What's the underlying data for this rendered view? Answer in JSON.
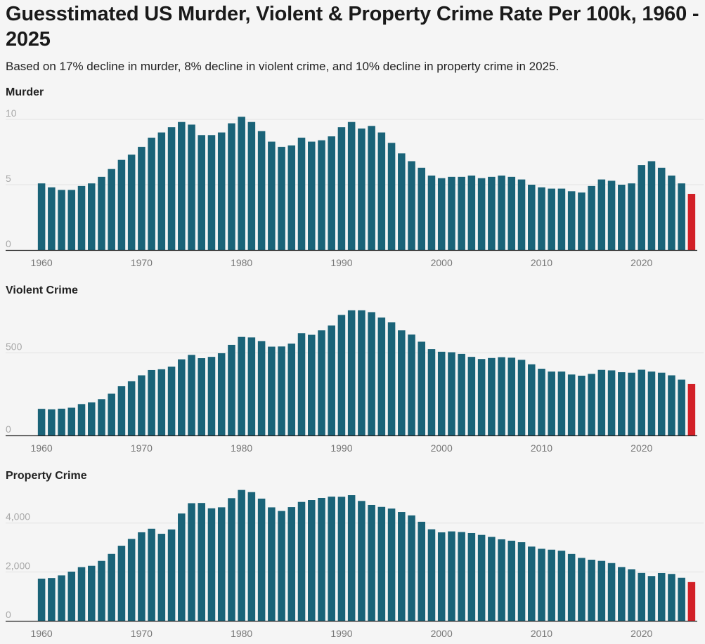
{
  "page": {
    "title": "Guesstimated US Murder, Violent & Property Crime Rate Per 100k, 1960 - 2025",
    "subtitle": "Based on 17% decline in murder, 8% decline in violent crime, and 10% decline in property crime in 2025."
  },
  "colors": {
    "bar": "#1a6378",
    "highlight": "#d22027"
  },
  "chart_data": [
    {
      "type": "bar",
      "title": "Murder",
      "x": [
        1960,
        1961,
        1962,
        1963,
        1964,
        1965,
        1966,
        1967,
        1968,
        1969,
        1970,
        1971,
        1972,
        1973,
        1974,
        1975,
        1976,
        1977,
        1978,
        1979,
        1980,
        1981,
        1982,
        1983,
        1984,
        1985,
        1986,
        1987,
        1988,
        1989,
        1990,
        1991,
        1992,
        1993,
        1994,
        1995,
        1996,
        1997,
        1998,
        1999,
        2000,
        2001,
        2002,
        2003,
        2004,
        2005,
        2006,
        2007,
        2008,
        2009,
        2010,
        2011,
        2012,
        2013,
        2014,
        2015,
        2016,
        2017,
        2018,
        2019,
        2020,
        2021,
        2022,
        2023,
        2024,
        2025
      ],
      "values": [
        5.1,
        4.8,
        4.6,
        4.6,
        4.9,
        5.1,
        5.6,
        6.2,
        6.9,
        7.3,
        7.9,
        8.6,
        9.0,
        9.4,
        9.8,
        9.6,
        8.8,
        8.8,
        9.0,
        9.7,
        10.2,
        9.8,
        9.1,
        8.3,
        7.9,
        8.0,
        8.6,
        8.3,
        8.4,
        8.7,
        9.4,
        9.8,
        9.3,
        9.5,
        9.0,
        8.2,
        7.4,
        6.8,
        6.3,
        5.7,
        5.5,
        5.6,
        5.6,
        5.7,
        5.5,
        5.6,
        5.7,
        5.6,
        5.4,
        5.0,
        4.8,
        4.7,
        4.7,
        4.5,
        4.4,
        4.9,
        5.4,
        5.3,
        5.0,
        5.1,
        6.5,
        6.8,
        6.3,
        5.7,
        5.1,
        4.3
      ],
      "highlight_index": 65,
      "ylim": [
        0,
        10
      ],
      "yticks": [
        0,
        5,
        10
      ],
      "ytick_labels": [
        "0",
        "5",
        "10"
      ],
      "xticks": [
        1960,
        1970,
        1980,
        1990,
        2000,
        2010,
        2020
      ],
      "xtick_labels": [
        "1960",
        "1970",
        "1980",
        "1990",
        "2000",
        "2010",
        "2020"
      ]
    },
    {
      "type": "bar",
      "title": "Violent Crime",
      "x": [
        1960,
        1961,
        1962,
        1963,
        1964,
        1965,
        1966,
        1967,
        1968,
        1969,
        1970,
        1971,
        1972,
        1973,
        1974,
        1975,
        1976,
        1977,
        1978,
        1979,
        1980,
        1981,
        1982,
        1983,
        1984,
        1985,
        1986,
        1987,
        1988,
        1989,
        1990,
        1991,
        1992,
        1993,
        1994,
        1995,
        1996,
        1997,
        1998,
        1999,
        2000,
        2001,
        2002,
        2003,
        2004,
        2005,
        2006,
        2007,
        2008,
        2009,
        2010,
        2011,
        2012,
        2013,
        2014,
        2015,
        2016,
        2017,
        2018,
        2019,
        2020,
        2021,
        2022,
        2023,
        2024,
        2025
      ],
      "values": [
        161,
        158,
        162,
        168,
        190,
        200,
        220,
        253,
        298,
        328,
        364,
        396,
        401,
        417,
        461,
        488,
        468,
        476,
        498,
        549,
        597,
        594,
        571,
        538,
        539,
        556,
        620,
        610,
        637,
        666,
        730,
        758,
        758,
        747,
        714,
        685,
        637,
        611,
        568,
        523,
        507,
        504,
        494,
        476,
        463,
        469,
        474,
        471,
        458,
        431,
        404,
        387,
        387,
        369,
        362,
        373,
        397,
        394,
        383,
        380,
        398,
        387,
        380,
        364,
        338,
        311
      ],
      "highlight_index": 65,
      "ylim": [
        0,
        800
      ],
      "yticks": [
        0,
        500
      ],
      "ytick_labels": [
        "0",
        "500"
      ],
      "xticks": [
        1960,
        1970,
        1980,
        1990,
        2000,
        2010,
        2020
      ],
      "xtick_labels": [
        "1960",
        "1970",
        "1980",
        "1990",
        "2000",
        "2010",
        "2020"
      ]
    },
    {
      "type": "bar",
      "title": "Property Crime",
      "x": [
        1960,
        1961,
        1962,
        1963,
        1964,
        1965,
        1966,
        1967,
        1968,
        1969,
        1970,
        1971,
        1972,
        1973,
        1974,
        1975,
        1976,
        1977,
        1978,
        1979,
        1980,
        1981,
        1982,
        1983,
        1984,
        1985,
        1986,
        1987,
        1988,
        1989,
        1990,
        1991,
        1992,
        1993,
        1994,
        1995,
        1996,
        1997,
        1998,
        1999,
        2000,
        2001,
        2002,
        2003,
        2004,
        2005,
        2006,
        2007,
        2008,
        2009,
        2010,
        2011,
        2012,
        2013,
        2014,
        2015,
        2016,
        2017,
        2018,
        2019,
        2020,
        2021,
        2022,
        2023,
        2024,
        2025
      ],
      "values": [
        1726,
        1748,
        1857,
        2012,
        2197,
        2249,
        2450,
        2736,
        3071,
        3351,
        3621,
        3768,
        3560,
        3737,
        4389,
        4811,
        4820,
        4602,
        4643,
        5017,
        5353,
        5264,
        4998,
        4641,
        4492,
        4651,
        4863,
        4940,
        5027,
        5078,
        5073,
        5140,
        4903,
        4740,
        4660,
        4591,
        4451,
        4311,
        4052,
        3744,
        3618,
        3658,
        3631,
        3591,
        3514,
        3432,
        3334,
        3277,
        3215,
        3036,
        2946,
        2909,
        2868,
        2734,
        2574,
        2500,
        2451,
        2362,
        2200,
        2110,
        1958,
        1832,
        1954,
        1917,
        1760,
        1584
      ],
      "highlight_index": 65,
      "ylim": [
        0,
        5400
      ],
      "yticks": [
        0,
        2000,
        4000
      ],
      "ytick_labels": [
        "0",
        "2,000",
        "4,000"
      ],
      "xticks": [
        1960,
        1970,
        1980,
        1990,
        2000,
        2010,
        2020
      ],
      "xtick_labels": [
        "1960",
        "1970",
        "1980",
        "1990",
        "2000",
        "2010",
        "2020"
      ]
    }
  ]
}
